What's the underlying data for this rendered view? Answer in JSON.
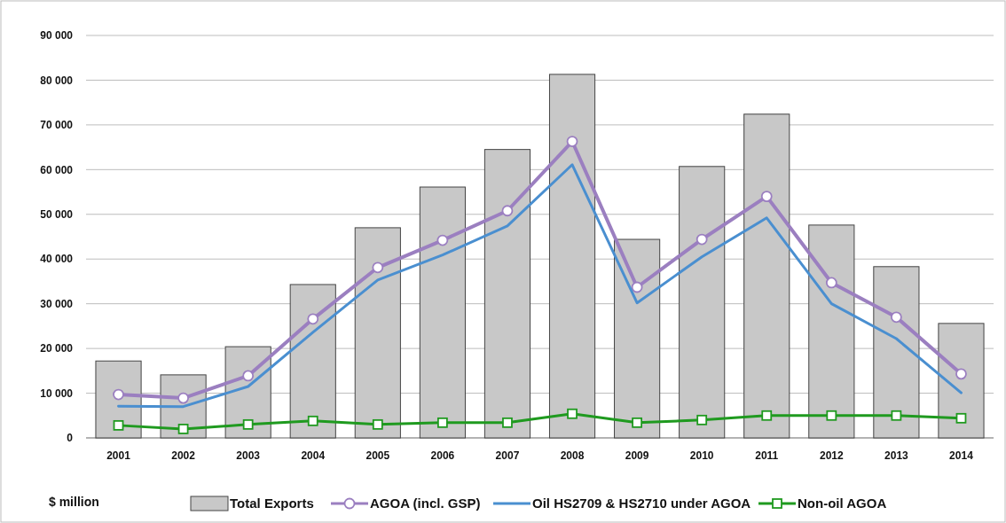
{
  "chart_data": {
    "type": "bar",
    "ylabel": "$ million",
    "categories": [
      "2001",
      "2002",
      "2003",
      "2004",
      "2005",
      "2006",
      "2007",
      "2008",
      "2009",
      "2010",
      "2011",
      "2012",
      "2013",
      "2014"
    ],
    "series": [
      {
        "name": "Total Exports",
        "color": "#c8c8c8",
        "values": [
          17200,
          14100,
          20400,
          34300,
          47000,
          56100,
          64500,
          81300,
          44400,
          60700,
          72400,
          47600,
          38300,
          25600
        ]
      },
      {
        "name": "AGOA (incl. GSP)",
        "type": "line",
        "color": "#9b7fc0",
        "marker": "circle",
        "values": [
          9700,
          8900,
          13900,
          26600,
          38100,
          44200,
          50800,
          66300,
          33700,
          44400,
          54000,
          34700,
          27000,
          14300
        ]
      },
      {
        "name": "Oil HS2709 & HS2710 under AGOA",
        "type": "line",
        "color": "#4a8fd0",
        "marker": "none",
        "values": [
          7100,
          7000,
          11500,
          23600,
          35300,
          40900,
          47400,
          61100,
          30200,
          40500,
          49200,
          30000,
          22200,
          10100
        ]
      },
      {
        "name": "Non-oil AGOA",
        "type": "line",
        "color": "#1f9a1f",
        "marker": "square",
        "values": [
          2800,
          2000,
          3000,
          3800,
          3000,
          3400,
          3400,
          5400,
          3400,
          4000,
          5000,
          5000,
          5000,
          4400
        ]
      }
    ],
    "ylim": [
      0,
      90000
    ],
    "yticks": [
      {
        "value": 0,
        "label": "0"
      },
      {
        "value": 10000,
        "label": "10 000"
      },
      {
        "value": 20000,
        "label": "20 000"
      },
      {
        "value": 30000,
        "label": "30 000"
      },
      {
        "value": 40000,
        "label": "40 000"
      },
      {
        "value": 50000,
        "label": "50 000"
      },
      {
        "value": 60000,
        "label": "60 000"
      },
      {
        "value": 70000,
        "label": "70 000"
      },
      {
        "value": 80000,
        "label": "80 000"
      },
      {
        "value": 90000,
        "label": "90 000"
      }
    ],
    "grid": "y",
    "legend": "bottom"
  }
}
